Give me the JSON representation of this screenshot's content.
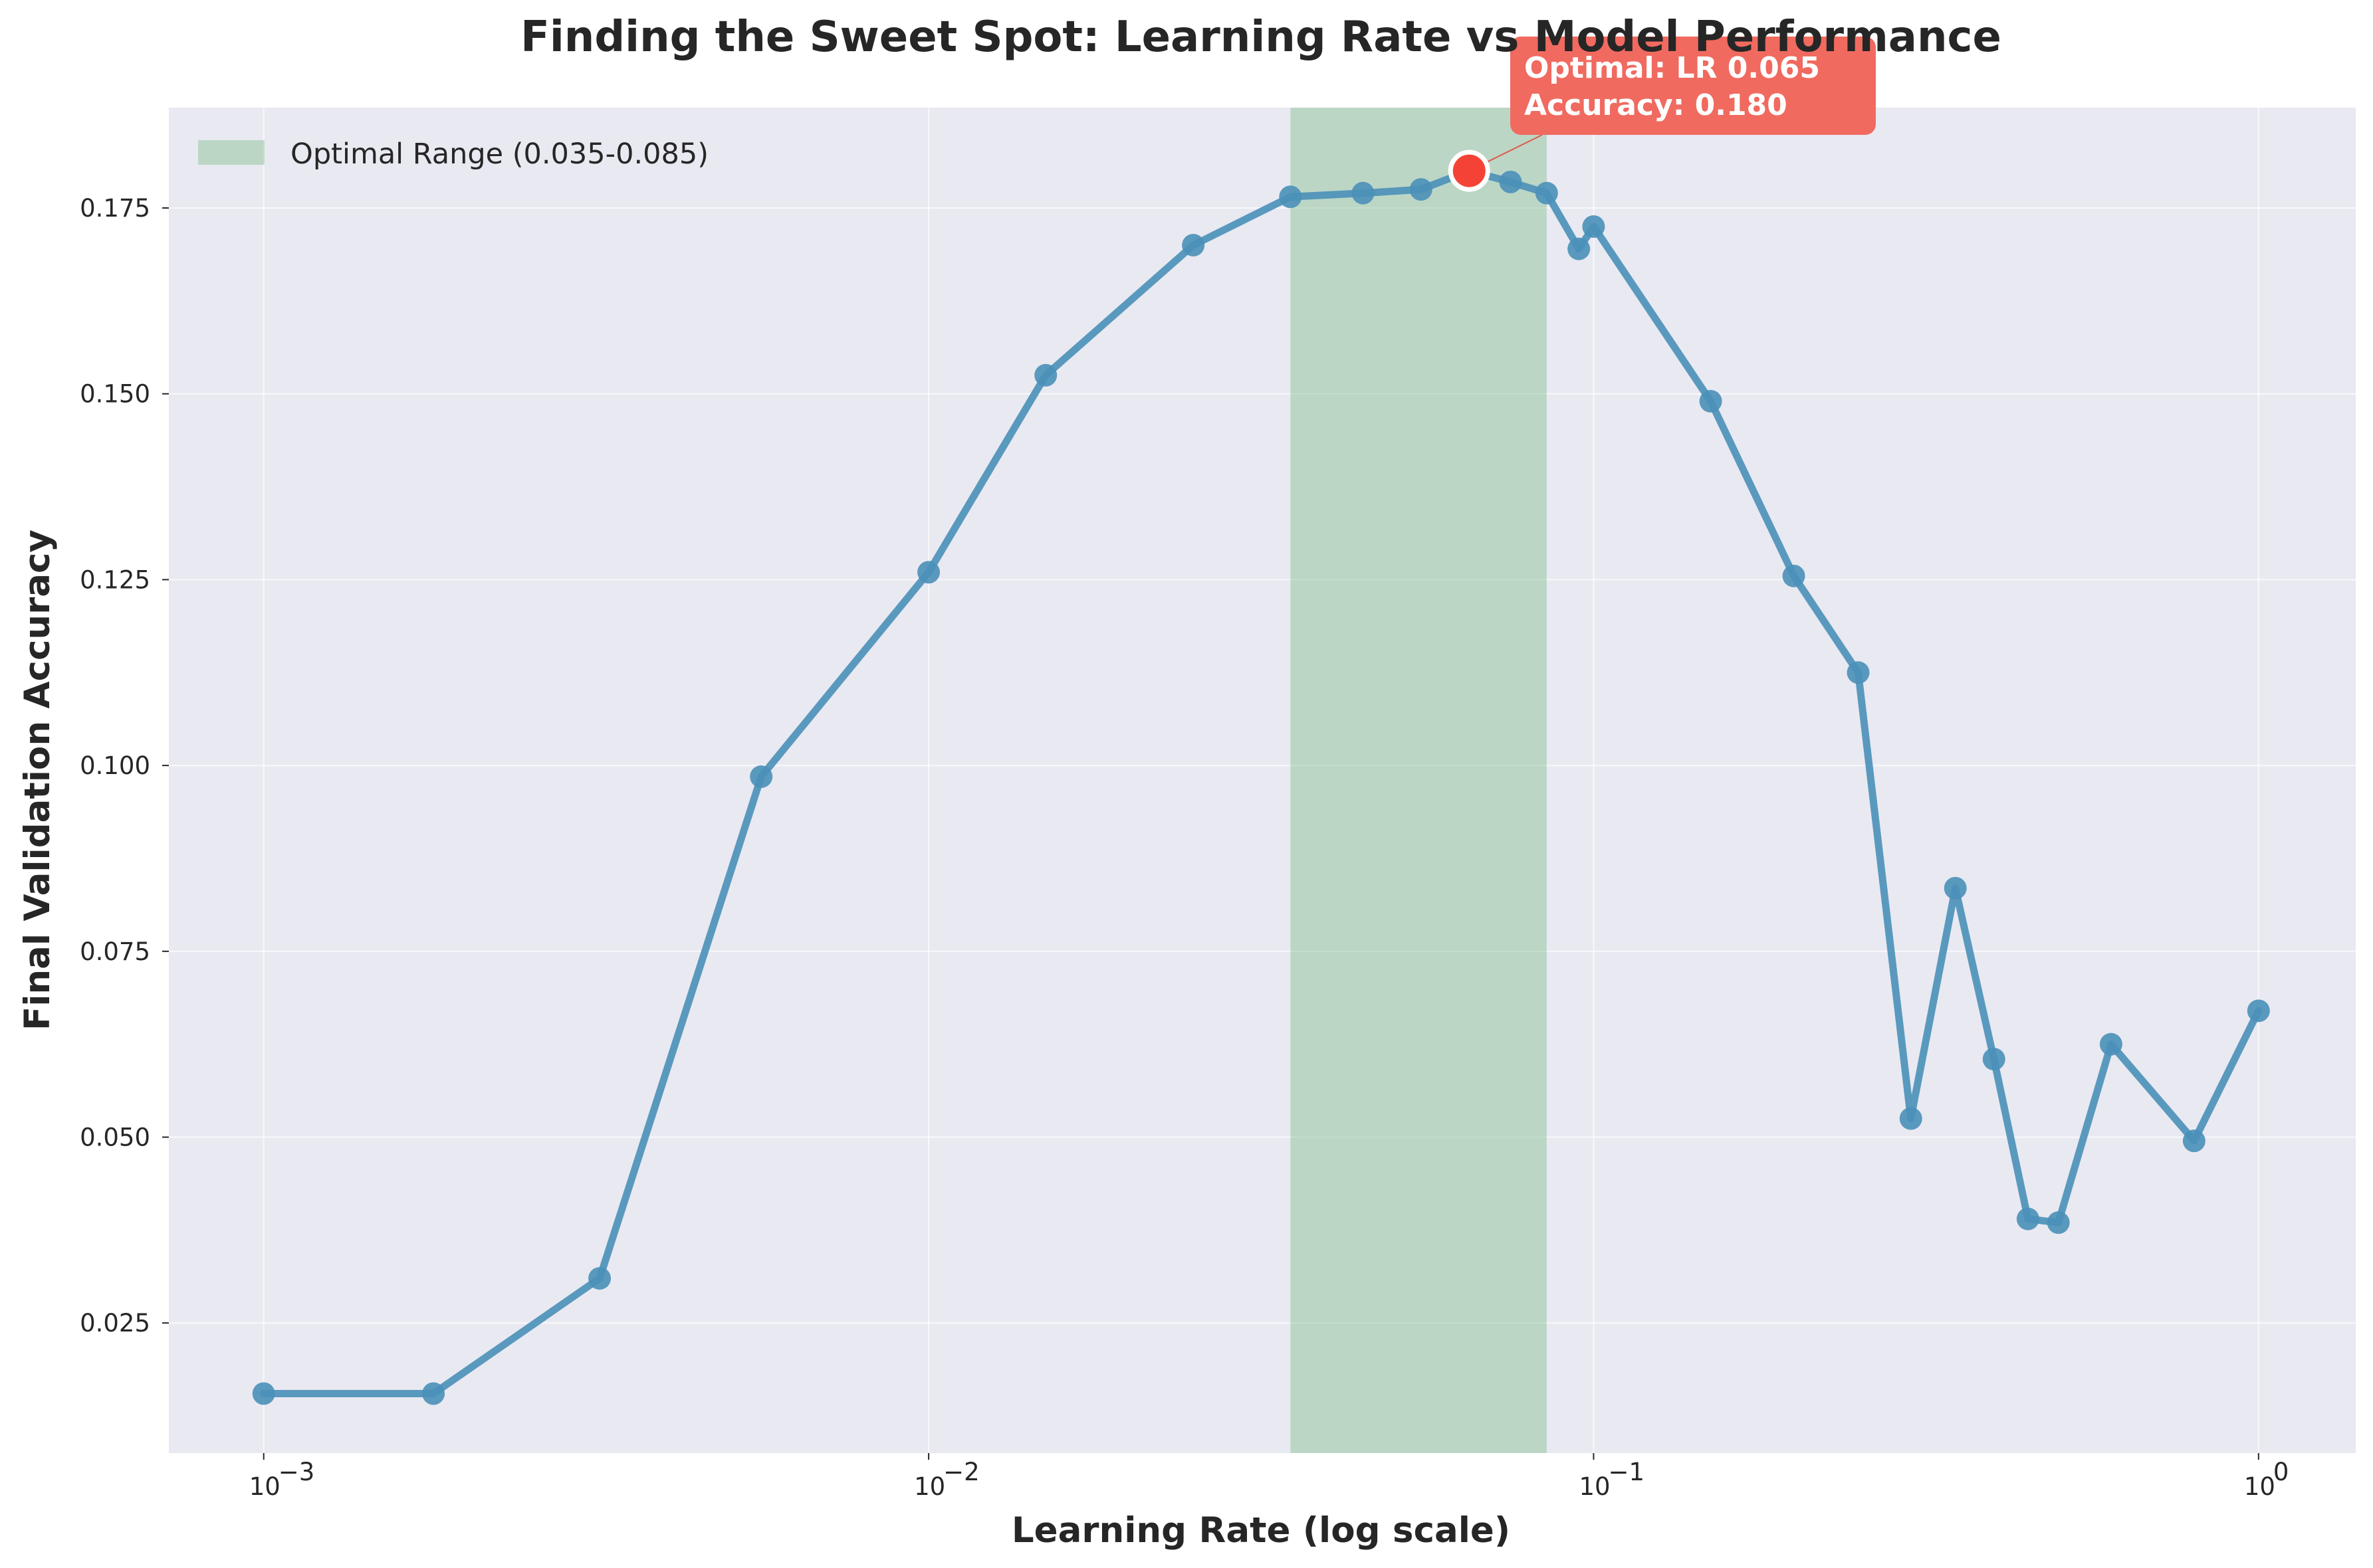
{
  "chart_data": {
    "type": "line",
    "title": "Finding the Sweet Spot: Learning Rate vs Model Performance",
    "xlabel": "Learning Rate (log scale)",
    "ylabel": "Final Validation Accuracy",
    "xscale": "log",
    "xlim": [
      0.00072,
      1.4
    ],
    "ylim": [
      0.0075,
      0.1885
    ],
    "grid": true,
    "background_color": "#e9e9f2",
    "line_color": "#4a90b8",
    "x_ticks": [
      {
        "value": 0.001,
        "mantissa": "10",
        "exponent": "−3"
      },
      {
        "value": 0.01,
        "mantissa": "10",
        "exponent": "−2"
      },
      {
        "value": 0.1,
        "mantissa": "10",
        "exponent": "−1"
      },
      {
        "value": 1,
        "mantissa": "10",
        "exponent": "0"
      }
    ],
    "y_ticks": [
      {
        "value": 0.025,
        "label": "0.025"
      },
      {
        "value": 0.05,
        "label": "0.050"
      },
      {
        "value": 0.075,
        "label": "0.075"
      },
      {
        "value": 0.1,
        "label": "0.100"
      },
      {
        "value": 0.125,
        "label": "0.125"
      },
      {
        "value": 0.15,
        "label": "0.150"
      },
      {
        "value": 0.175,
        "label": "0.175"
      }
    ],
    "series": [
      {
        "x": [
          0.001,
          0.0018,
          0.0032,
          0.0056,
          0.01,
          0.015,
          0.025,
          0.035,
          0.045,
          0.055,
          0.065,
          0.075,
          0.085,
          0.095,
          0.1,
          0.15,
          0.2,
          0.25,
          0.3,
          0.35,
          0.4,
          0.45,
          0.5,
          0.6,
          0.8,
          1.0
        ],
        "y": [
          0.0155,
          0.0155,
          0.031,
          0.0985,
          0.126,
          0.1525,
          0.17,
          0.1765,
          0.177,
          0.1775,
          0.18,
          0.1785,
          0.177,
          0.1695,
          0.1725,
          0.149,
          0.1255,
          0.1125,
          0.0525,
          0.0835,
          0.0605,
          0.039,
          0.0385,
          0.0625,
          0.0495,
          0.067
        ]
      }
    ],
    "shaded_region": {
      "x_start": 0.035,
      "x_end": 0.085,
      "color": "#8fc49a",
      "label": "Optimal Range (0.035-0.085)"
    },
    "optimal_point": {
      "x": 0.065,
      "y": 0.18,
      "color": "#f44336"
    },
    "annotation": {
      "line1": "Optimal: LR 0.065",
      "line2": "Accuracy: 0.180",
      "color": "#f06a60"
    },
    "legend_position": "top-left"
  }
}
